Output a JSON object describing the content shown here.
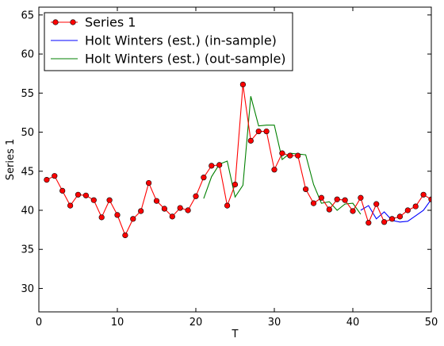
{
  "chart_data": {
    "type": "line",
    "xlabel": "T",
    "ylabel": "Series 1",
    "xlim": [
      0,
      50
    ],
    "ylim": [
      27,
      66
    ],
    "xticks": [
      0,
      10,
      20,
      30,
      40,
      50
    ],
    "yticks": [
      30,
      35,
      40,
      45,
      50,
      55,
      60,
      65
    ],
    "grid": false,
    "legend_position": "top-left",
    "series": [
      {
        "name": "Series 1",
        "color": "#ff0000",
        "marker": "circle",
        "x": [
          1,
          2,
          3,
          4,
          5,
          6,
          7,
          8,
          9,
          10,
          11,
          12,
          13,
          14,
          15,
          16,
          17,
          18,
          19,
          20,
          21,
          22,
          23,
          24,
          25,
          26,
          27,
          28,
          29,
          30,
          31,
          32,
          33,
          34,
          35,
          36,
          37,
          38,
          39,
          40,
          41,
          42,
          43,
          44,
          45,
          46,
          47,
          48,
          49,
          50
        ],
        "y": [
          43.9,
          44.4,
          42.5,
          40.6,
          42.0,
          41.9,
          41.3,
          39.1,
          41.3,
          39.4,
          36.8,
          38.9,
          39.9,
          43.5,
          41.2,
          40.2,
          39.2,
          40.3,
          40.0,
          41.8,
          44.2,
          45.7,
          45.8,
          40.6,
          43.3,
          56.1,
          48.9,
          50.1,
          50.1,
          45.2,
          47.3,
          47.0,
          47.0,
          42.7,
          40.9,
          41.6,
          40.1,
          41.4,
          41.3,
          39.9,
          41.6,
          38.4,
          40.8,
          38.5,
          38.9,
          39.2,
          40.0,
          40.5,
          42.0,
          41.4
        ]
      },
      {
        "name": "Holt Winters (est.) (in-sample)",
        "color": "#0000ff",
        "marker": "none",
        "x": [
          41,
          42,
          43,
          44,
          45,
          46,
          47,
          48,
          49,
          50
        ],
        "y": [
          40.0,
          40.6,
          38.9,
          39.8,
          38.7,
          38.5,
          38.6,
          39.3,
          40.0,
          41.4
        ]
      },
      {
        "name": "Holt Winters (est.) (out-sample)",
        "color": "#008000",
        "marker": "none",
        "x": [
          21,
          22,
          23,
          24,
          25,
          26,
          27,
          28,
          29,
          30,
          31,
          32,
          33,
          34,
          35,
          36,
          37,
          38,
          39,
          40,
          41
        ],
        "y": [
          41.5,
          44.3,
          45.9,
          46.3,
          41.7,
          43.2,
          54.6,
          50.8,
          50.9,
          50.9,
          46.5,
          47.3,
          47.2,
          47.1,
          43.3,
          40.9,
          41.1,
          40.0,
          40.8,
          40.9,
          39.5
        ]
      }
    ]
  }
}
